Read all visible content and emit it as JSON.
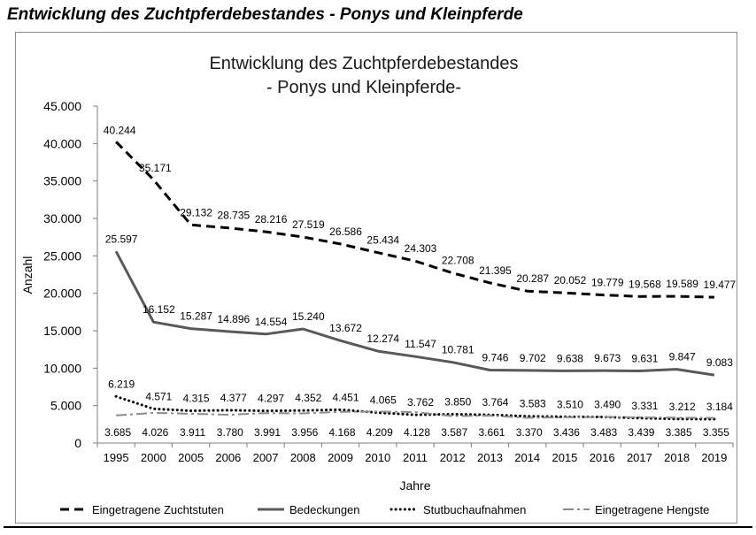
{
  "page": {
    "heading": "Entwicklung des Zuchtpferdebestandes - Ponys und Kleinpferde"
  },
  "chart_data": {
    "type": "line",
    "title_lines": [
      "Entwicklung des Zuchtpferdebestandes",
      "- Ponys und Kleinpferde-"
    ],
    "xlabel": "Jahre",
    "ylabel": "Anzahl",
    "ylim": [
      0,
      45000
    ],
    "yticks": [
      0,
      5000,
      10000,
      15000,
      20000,
      25000,
      30000,
      35000,
      40000,
      45000
    ],
    "ytick_labels": [
      "0",
      "5.000",
      "10.000",
      "15.000",
      "20.000",
      "25.000",
      "30.000",
      "35.000",
      "40.000",
      "45.000"
    ],
    "grid": false,
    "legend_position": "bottom",
    "categories": [
      "1995",
      "2000",
      "2005",
      "2006",
      "2007",
      "2008",
      "2009",
      "2010",
      "2011",
      "2012",
      "2013",
      "2014",
      "2015",
      "2016",
      "2017",
      "2018",
      "2019"
    ],
    "series": [
      {
        "name": "Eingetragene Zuchtstuten",
        "style": "dashed",
        "color": "#000000",
        "values": [
          40244,
          35171,
          29132,
          28735,
          28216,
          27519,
          26586,
          25434,
          24303,
          22708,
          21395,
          20287,
          20052,
          19779,
          19568,
          19589,
          19477
        ],
        "labels": [
          "40.244",
          "35.171",
          "29.132",
          "28.735",
          "28.216",
          "27.519",
          "26.586",
          "25.434",
          "24.303",
          "22.708",
          "21.395",
          "20.287",
          "20.052",
          "19.779",
          "19.568",
          "19.589",
          "19.477"
        ]
      },
      {
        "name": "Bedeckungen",
        "style": "solid",
        "color": "#595959",
        "values": [
          25597,
          16152,
          15287,
          14896,
          14554,
          15240,
          13672,
          12274,
          11547,
          10781,
          9746,
          9702,
          9638,
          9673,
          9631,
          9847,
          9083
        ],
        "labels": [
          "25.597",
          "16.152",
          "15.287",
          "14.896",
          "14.554",
          "15.240",
          "13.672",
          "12.274",
          "11.547",
          "10.781",
          "9.746",
          "9.702",
          "9.638",
          "9.673",
          "9.631",
          "9.847",
          "9.083"
        ]
      },
      {
        "name": "Stutbuchaufnahmen",
        "style": "dotted",
        "color": "#000000",
        "values": [
          6219,
          4571,
          4315,
          4377,
          4297,
          4352,
          4451,
          4065,
          3762,
          3850,
          3764,
          3583,
          3510,
          3490,
          3331,
          3212,
          3184
        ],
        "labels": [
          "6.219",
          "4.571",
          "4.315",
          "4.377",
          "4.297",
          "4.352",
          "4.451",
          "4.065",
          "3.762",
          "3.850",
          "3.764",
          "3.583",
          "3.510",
          "3.490",
          "3.331",
          "3.212",
          "3.184"
        ]
      },
      {
        "name": "Eingetragene Hengste",
        "style": "dashdot",
        "color": "#8c8c8c",
        "values": [
          3685,
          4026,
          3911,
          3780,
          3991,
          3956,
          4168,
          4209,
          4128,
          3587,
          3661,
          3370,
          3436,
          3483,
          3439,
          3385,
          3355
        ],
        "labels": [
          "3.685",
          "4.026",
          "3.911",
          "3.780",
          "3.991",
          "3.956",
          "4.168",
          "4.209",
          "4.128",
          "3.587",
          "3.661",
          "3.370",
          "3.436",
          "3.483",
          "3.439",
          "3.385",
          "3.355"
        ]
      }
    ]
  }
}
